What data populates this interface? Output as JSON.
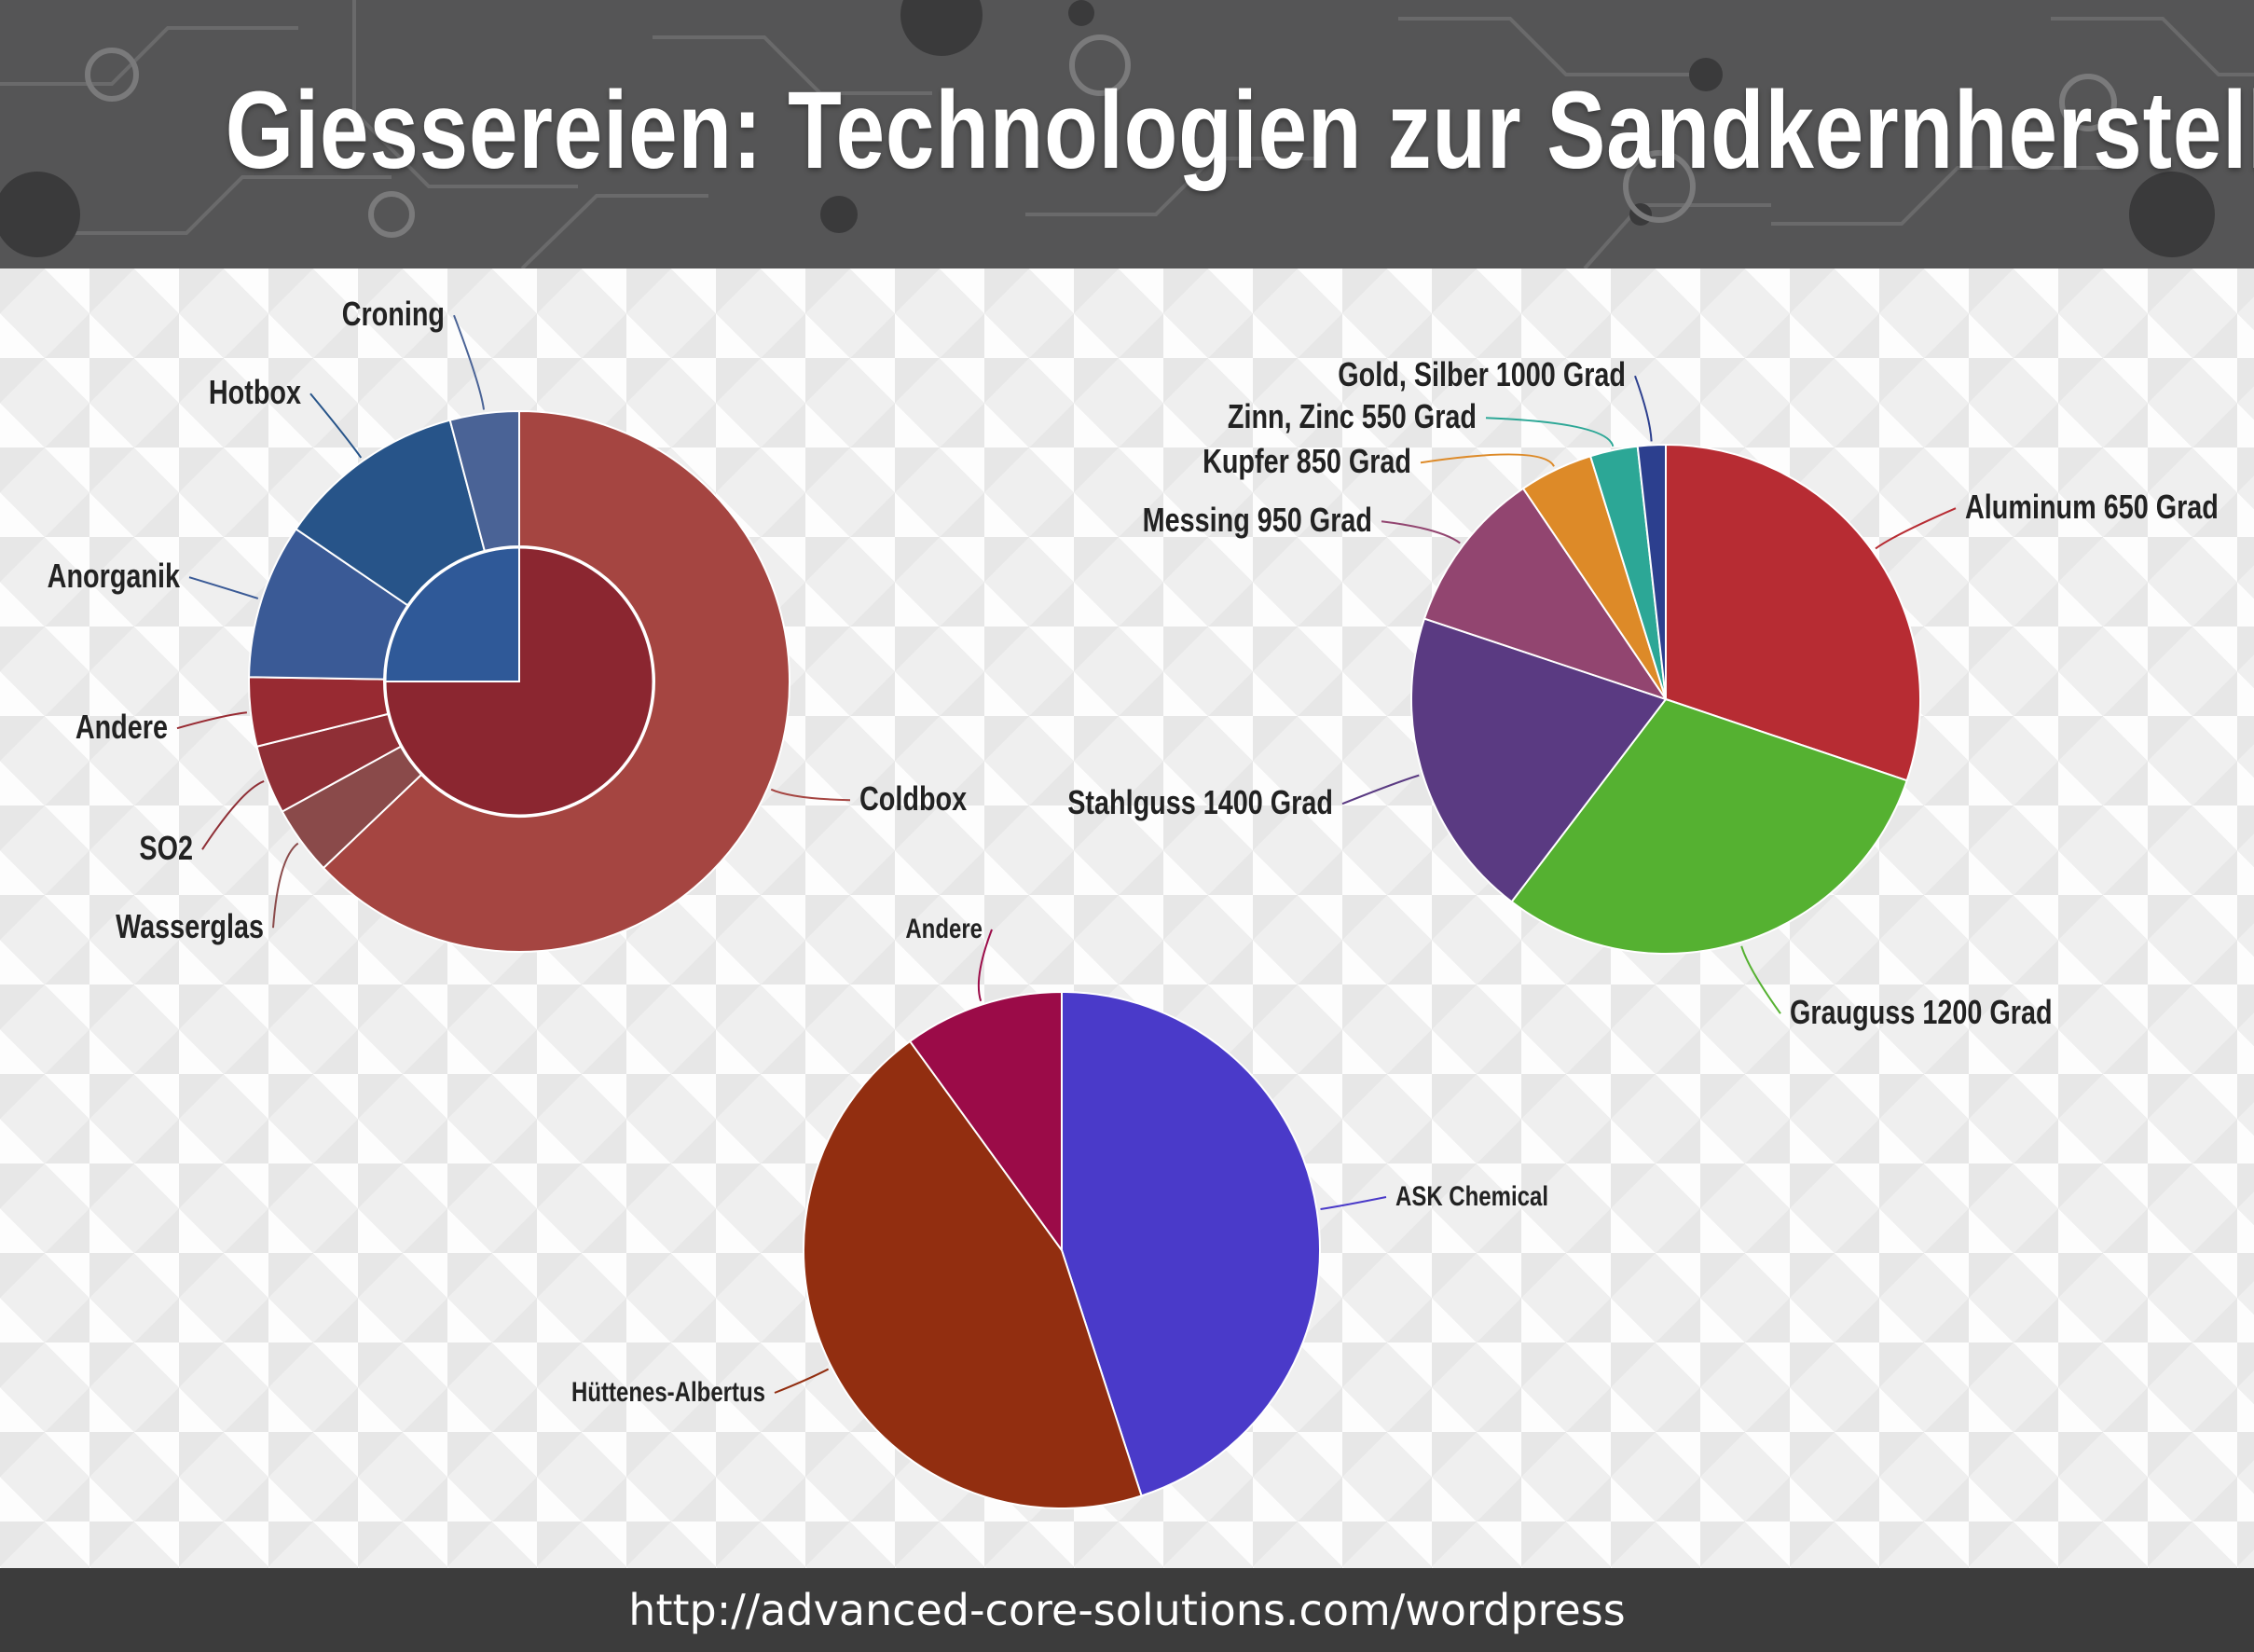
{
  "header": {
    "title": "Giessereien: Technologien zur Sandkernherstellung"
  },
  "footer": {
    "url": "http://advanced-core-solutions.com/wordpress"
  },
  "chart_data": [
    {
      "type": "pie",
      "variant": "sunburst",
      "inner_ring": [
        {
          "name": "",
          "value": 75,
          "color": "#8b2630"
        },
        {
          "name": "",
          "value": 25,
          "color": "#2f5998"
        }
      ],
      "outer_ring": [
        {
          "name": "Coldbox",
          "value": 61,
          "color": "#a54541"
        },
        {
          "name": "Wasserglas",
          "value": 4,
          "color": "#8a4a4a"
        },
        {
          "name": "SO2",
          "value": 4,
          "color": "#8f2f36"
        },
        {
          "name": "Andere",
          "value": 4,
          "color": "#982a32"
        },
        {
          "name": "Anorganik",
          "value": 9,
          "color": "#3a5a96"
        },
        {
          "name": "Hotbox",
          "value": 11,
          "color": "#275489"
        },
        {
          "name": "Croning",
          "value": 4,
          "color": "#4a6396"
        }
      ]
    },
    {
      "type": "pie",
      "slices": [
        {
          "name": "Aluminum 650 Grad",
          "value": 29,
          "color": "#b72c33"
        },
        {
          "name": "Grauguss 1200 Grad",
          "value": 29,
          "color": "#55b131"
        },
        {
          "name": "Stahlguss 1400 Grad",
          "value": 19,
          "color": "#5a3a82"
        },
        {
          "name": "Messing 950 Grad",
          "value": 10,
          "color": "#924570"
        },
        {
          "name": "Kupfer 850 Grad",
          "value": 4.5,
          "color": "#dd8a28"
        },
        {
          "name": "Zinn, Zinc 550 Grad",
          "value": 2.9,
          "color": "#2ca796"
        },
        {
          "name": "Gold, Silber 1000 Grad",
          "value": 1.7,
          "color": "#2c3f8e"
        }
      ]
    },
    {
      "type": "pie",
      "slices": [
        {
          "name": "ASK Chemical",
          "value": 45,
          "color": "#4a3ac9"
        },
        {
          "name": "Hüttenes-Albertus",
          "value": 45,
          "color": "#922e10"
        },
        {
          "name": "Andere",
          "value": 10,
          "color": "#9b0b48"
        }
      ]
    }
  ]
}
